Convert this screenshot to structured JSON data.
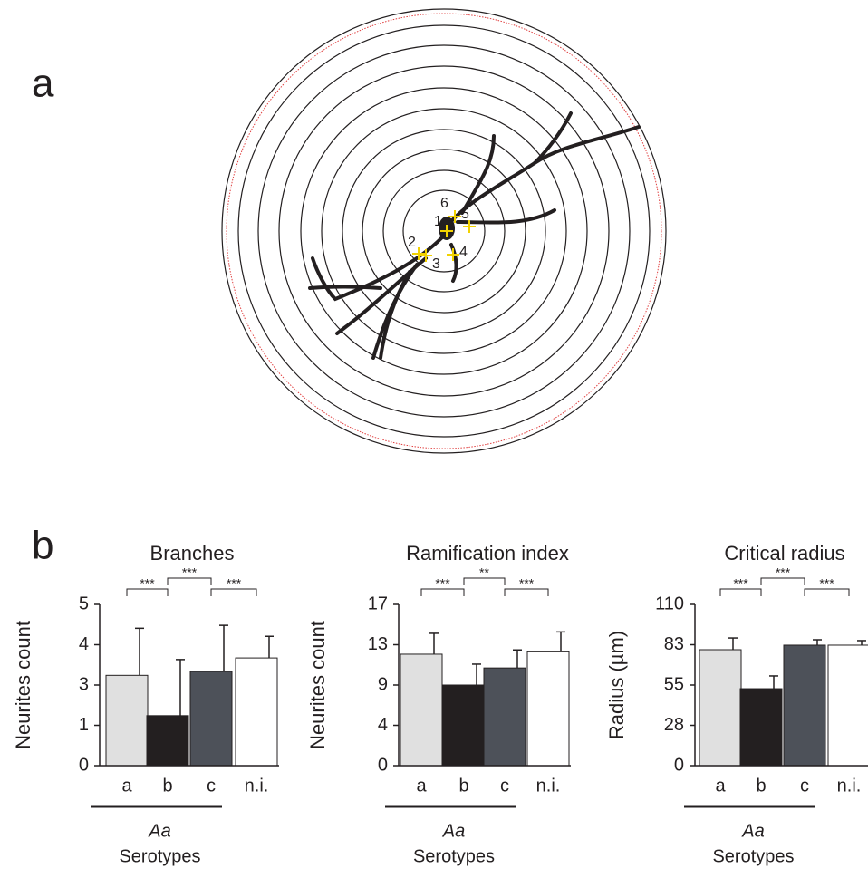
{
  "panel_labels": [
    "a",
    "b"
  ],
  "diagram": {
    "labels": [
      "1",
      "2",
      "3",
      "4",
      "5",
      "6"
    ]
  },
  "chart_data": [
    {
      "type": "bar",
      "title": "Branches",
      "ylabel": "Neurites count",
      "categories": [
        "a",
        "b",
        "c",
        "n.i."
      ],
      "values": [
        2.8,
        1.55,
        2.92,
        3.34
      ],
      "errors": [
        1.46,
        1.74,
        1.43,
        0.67
      ],
      "colors": [
        "#e0e0e0",
        "#231f20",
        "#4d5159",
        "#ffffff"
      ],
      "ylim": [
        0,
        5
      ],
      "yticks": [
        0,
        {
          "value": 1.25,
          "label": "1"
        },
        {
          "value": 2.5,
          "label": "3"
        },
        {
          "value": 3.75,
          "label": "4"
        },
        5
      ],
      "group_label": "Aa",
      "xlabel": "Serotypes",
      "annotations": [
        "***",
        "***",
        "***"
      ]
    },
    {
      "type": "bar",
      "title": "Ramification index",
      "ylabel": "Neurites count",
      "categories": [
        "a",
        "b",
        "c",
        "n.i."
      ],
      "values": [
        11.75,
        8.5,
        10.3,
        12.0
      ],
      "errors": [
        2.2,
        2.2,
        1.9,
        2.1
      ],
      "colors": [
        "#e0e0e0",
        "#231f20",
        "#4d5159",
        "#ffffff"
      ],
      "ylim": [
        0,
        17
      ],
      "yticks": [
        0,
        {
          "value": 4.25,
          "label": "4"
        },
        {
          "value": 8.5,
          "label": "9"
        },
        {
          "value": 12.75,
          "label": "13"
        },
        17
      ],
      "group_label": "Aa",
      "xlabel": "Serotypes",
      "annotations": [
        "***",
        "**",
        "***"
      ]
    },
    {
      "type": "bar",
      "title": "Critical radius",
      "ylabel": "Radius (µm)",
      "categories": [
        "a",
        "b",
        "c",
        "n.i."
      ],
      "values": [
        79.1,
        52.5,
        82.2,
        82.2
      ],
      "errors": [
        8,
        8.7,
        3.7,
        3.1
      ],
      "colors": [
        "#e0e0e0",
        "#231f20",
        "#4d5159",
        "#ffffff"
      ],
      "ylim": [
        0,
        110
      ],
      "yticks": [
        0,
        {
          "value": 27.5,
          "label": "28"
        },
        55,
        {
          "value": 82.5,
          "label": "83"
        },
        110
      ],
      "group_label": "Aa",
      "xlabel": "Serotypes",
      "annotations": [
        "***",
        "***",
        "***"
      ]
    }
  ]
}
